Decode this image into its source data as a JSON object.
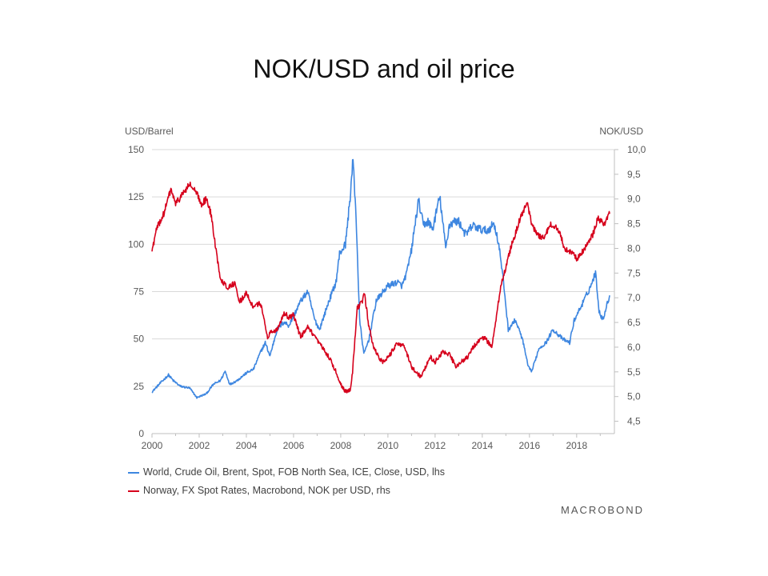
{
  "title": "NOK/USD and oil price",
  "axis_units": {
    "left": "USD/Barrel",
    "right": "NOK/USD"
  },
  "legend": [
    {
      "label": "World, Crude Oil, Brent, Spot, FOB North Sea, ICE, Close, USD, lhs",
      "color": "#3d86e0"
    },
    {
      "label": "Norway, FX Spot Rates, Macrobond, NOK per USD, rhs",
      "color": "#d6001c"
    }
  ],
  "logo": "MACROBOND",
  "chart_data": {
    "type": "line",
    "title": "NOK/USD and oil price",
    "x_ticks": [
      "2000",
      "2002",
      "2004",
      "2006",
      "2008",
      "2010",
      "2012",
      "2014",
      "2016",
      "2018"
    ],
    "xlim": [
      2000.0,
      2019.6
    ],
    "left_axis": {
      "label": "USD/Barrel",
      "ylim": [
        0,
        150
      ],
      "ticks": [
        "0",
        "25",
        "50",
        "75",
        "100",
        "125",
        "150"
      ]
    },
    "right_axis": {
      "label": "NOK/USD",
      "ylim": [
        4.25,
        10.0
      ],
      "ticks": [
        "4,5",
        "5,0",
        "5,5",
        "6,0",
        "6,5",
        "7,0",
        "7,5",
        "8,0",
        "8,5",
        "9,0",
        "9,5",
        "10,0"
      ]
    },
    "grid": true,
    "series": [
      {
        "name": "World, Crude Oil, Brent, Spot, FOB North Sea, ICE, Close, USD, lhs",
        "axis": "left",
        "color": "#3d86e0",
        "x": [
          2000.0,
          2000.3,
          2000.7,
          2000.9,
          2001.2,
          2001.6,
          2001.9,
          2002.3,
          2002.6,
          2002.9,
          2003.1,
          2003.3,
          2003.6,
          2004.0,
          2004.3,
          2004.6,
          2004.8,
          2005.0,
          2005.3,
          2005.6,
          2005.8,
          2006.0,
          2006.3,
          2006.6,
          2006.9,
          2007.1,
          2007.5,
          2007.8,
          2007.95,
          2008.2,
          2008.4,
          2008.52,
          2008.65,
          2008.8,
          2008.98,
          2009.2,
          2009.5,
          2009.8,
          2010.0,
          2010.4,
          2010.6,
          2010.8,
          2011.0,
          2011.2,
          2011.3,
          2011.5,
          2011.7,
          2011.9,
          2012.1,
          2012.2,
          2012.45,
          2012.6,
          2012.8,
          2013.0,
          2013.3,
          2013.6,
          2013.9,
          2014.2,
          2014.5,
          2014.7,
          2014.9,
          2015.1,
          2015.4,
          2015.7,
          2015.95,
          2016.1,
          2016.4,
          2016.7,
          2017.0,
          2017.4,
          2017.7,
          2017.9,
          2018.3,
          2018.6,
          2018.8,
          2018.95,
          2019.1,
          2019.4
        ],
        "values": [
          22,
          26,
          31,
          28,
          25,
          24,
          19,
          21,
          26,
          28,
          33,
          26,
          28,
          32,
          34,
          43,
          48,
          41,
          55,
          59,
          57,
          62,
          70,
          75,
          60,
          55,
          70,
          80,
          95,
          100,
          125,
          145,
          115,
          60,
          42,
          50,
          70,
          75,
          78,
          80,
          78,
          85,
          97,
          115,
          123,
          110,
          112,
          108,
          120,
          125,
          98,
          110,
          112,
          112,
          105,
          110,
          108,
          107,
          111,
          100,
          80,
          55,
          60,
          50,
          35,
          33,
          45,
          48,
          55,
          50,
          48,
          60,
          70,
          78,
          85,
          65,
          60,
          73
        ]
      },
      {
        "name": "Norway, FX Spot Rates, Macrobond, NOK per USD, rhs",
        "axis": "right",
        "color": "#d6001c",
        "x": [
          2000.0,
          2000.2,
          2000.5,
          2000.8,
          2001.0,
          2001.3,
          2001.6,
          2001.9,
          2002.1,
          2002.3,
          2002.5,
          2002.7,
          2002.9,
          2003.2,
          2003.5,
          2003.7,
          2004.0,
          2004.3,
          2004.6,
          2004.9,
          2005.0,
          2005.3,
          2005.6,
          2005.8,
          2006.0,
          2006.3,
          2006.6,
          2006.9,
          2007.2,
          2007.5,
          2007.8,
          2008.0,
          2008.2,
          2008.4,
          2008.5,
          2008.7,
          2008.9,
          2009.0,
          2009.2,
          2009.4,
          2009.6,
          2009.8,
          2010.1,
          2010.4,
          2010.7,
          2011.0,
          2011.2,
          2011.4,
          2011.6,
          2011.8,
          2012.0,
          2012.3,
          2012.6,
          2012.9,
          2013.1,
          2013.4,
          2013.6,
          2013.8,
          2014.1,
          2014.4,
          2014.6,
          2014.8,
          2015.0,
          2015.2,
          2015.4,
          2015.6,
          2015.9,
          2016.1,
          2016.3,
          2016.6,
          2016.9,
          2017.2,
          2017.5,
          2017.8,
          2018.0,
          2018.2,
          2018.5,
          2018.7,
          2018.9,
          2019.2,
          2019.4
        ],
        "values": [
          7.95,
          8.4,
          8.7,
          9.2,
          8.9,
          9.1,
          9.3,
          9.1,
          8.9,
          9.0,
          8.7,
          8.0,
          7.4,
          7.2,
          7.3,
          6.9,
          7.1,
          6.8,
          6.9,
          6.2,
          6.3,
          6.35,
          6.7,
          6.6,
          6.65,
          6.2,
          6.4,
          6.2,
          6.0,
          5.8,
          5.5,
          5.25,
          5.1,
          5.15,
          5.5,
          6.8,
          6.9,
          7.1,
          6.4,
          6.0,
          5.8,
          5.7,
          5.85,
          6.1,
          6.0,
          5.6,
          5.5,
          5.4,
          5.6,
          5.8,
          5.7,
          5.9,
          5.85,
          5.6,
          5.7,
          5.8,
          6.0,
          6.1,
          6.2,
          6.0,
          6.6,
          7.3,
          7.6,
          8.0,
          8.3,
          8.6,
          8.9,
          8.5,
          8.3,
          8.2,
          8.5,
          8.4,
          8.0,
          7.9,
          7.8,
          7.9,
          8.1,
          8.3,
          8.6,
          8.5,
          8.7
        ]
      }
    ]
  }
}
